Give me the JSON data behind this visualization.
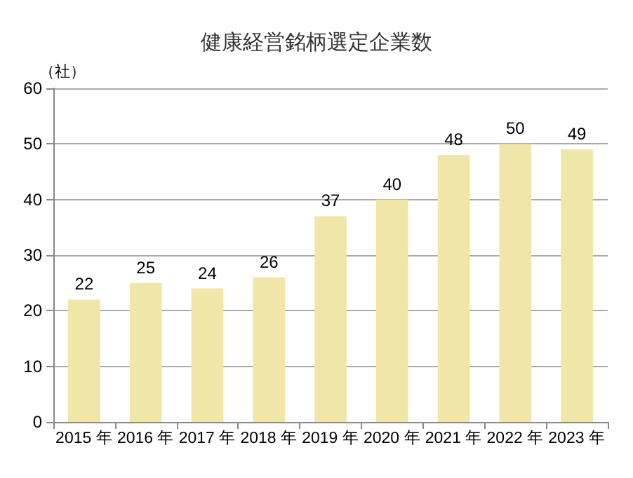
{
  "chart_data": {
    "type": "bar",
    "title": "健康経営銘柄選定企業数",
    "ylabel": "（社）",
    "categories": [
      "2015 年",
      "2016 年",
      "2017 年",
      "2018 年",
      "2019 年",
      "2020 年",
      "2021 年",
      "2022 年",
      "2023 年"
    ],
    "values": [
      22,
      25,
      24,
      26,
      37,
      40,
      48,
      50,
      49
    ],
    "color": "#efe6a8",
    "ylim": [
      0,
      60
    ],
    "yticks": [
      0,
      10,
      20,
      30,
      40,
      50,
      60
    ],
    "grid": "y",
    "data_labels": true
  }
}
